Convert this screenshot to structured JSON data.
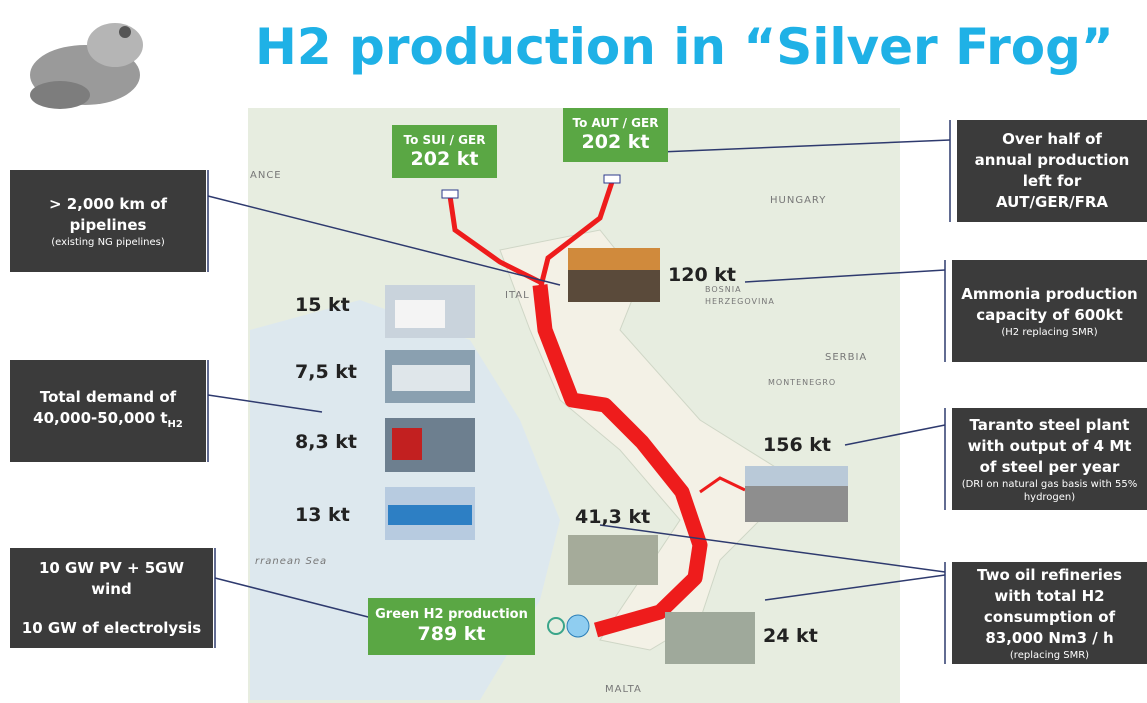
{
  "title": "H2 production in “Silver Frog”",
  "exports": [
    {
      "label": "To SUI / GER",
      "amount": "202 kt"
    },
    {
      "label": "To AUT / GER",
      "amount": "202 kt"
    }
  ],
  "production": {
    "label": "Green H2 production",
    "amount": "789 kt"
  },
  "left_boxes": {
    "pipelines": {
      "text": "> 2,000 km of pipelines",
      "note": "(existing NG pipelines)"
    },
    "demand": {
      "text": "Total demand of 40,000-50,000 t",
      "subscript": "H2"
    },
    "capacity": {
      "line1": "10 GW PV + 5GW wind",
      "line2": "10 GW of electrolysis"
    }
  },
  "right_boxes": [
    {
      "text": "Over half of annual production left for AUT/GER/FRA"
    },
    {
      "text": "Ammonia production capacity of 600kt",
      "note": "(H2 replacing SMR)"
    },
    {
      "text": "Taranto steel plant with output of 4 Mt of steel per year",
      "note": "(DRI on natural gas basis with 55% hydrogen)"
    },
    {
      "text": "Two oil refineries with total H2 consumption of 83,000 Nm3 / h",
      "note": "(replacing SMR)"
    }
  ],
  "site_amounts": {
    "ammonia": "120 kt",
    "steel": "156 kt",
    "refinery_1": "41,3 kt",
    "refinery_2": "24 kt"
  },
  "mobility": [
    "15 kt",
    "7,5 kt",
    "8,3 kt",
    "13 kt"
  ],
  "map_labels": [
    "ANCE",
    "HUNGARY",
    "ITAL",
    "BOSNIA",
    "HERZEGOVINA",
    "SERBIA",
    "MONTENEGRO",
    "rranean Sea",
    "MALTA"
  ]
}
